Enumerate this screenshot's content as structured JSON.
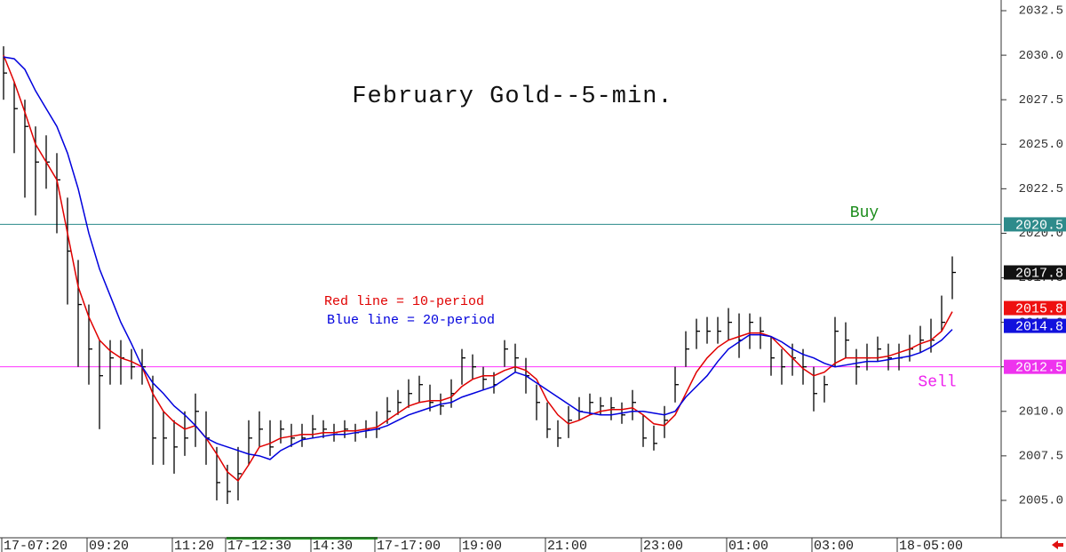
{
  "chart_data": {
    "type": "hlc",
    "title": "February Gold--5-min.",
    "annotations": [
      {
        "text": "Red line = 10-period",
        "color": "#e00000"
      },
      {
        "text": "Blue line = 20-period",
        "color": "#0000dd"
      }
    ],
    "categories": [
      "17-07:20",
      null,
      null,
      null,
      null,
      null,
      null,
      null,
      "09:20",
      null,
      null,
      null,
      null,
      null,
      null,
      null,
      "11:20",
      null,
      null,
      null,
      null,
      "17-12:30",
      null,
      null,
      null,
      null,
      null,
      null,
      null,
      "14:30",
      null,
      null,
      null,
      null,
      null,
      "17-17:00",
      null,
      null,
      null,
      null,
      null,
      null,
      null,
      "19:00",
      null,
      null,
      null,
      null,
      null,
      null,
      null,
      "21:00",
      null,
      null,
      null,
      null,
      null,
      null,
      null,
      null,
      "23:00",
      null,
      null,
      null,
      null,
      null,
      null,
      null,
      "01:00",
      null,
      null,
      null,
      null,
      null,
      null,
      null,
      "03:00",
      null,
      null,
      null,
      null,
      null,
      null,
      null,
      "18-05:00",
      null,
      null,
      null,
      null,
      null
    ],
    "high": [
      2030.5,
      2028.5,
      2027.5,
      2026.0,
      2025.5,
      2024.5,
      2022.0,
      2018.5,
      2016.0,
      2014.0,
      2014.0,
      2014.0,
      2013.5,
      2013.5,
      2012.0,
      2010.0,
      2009.5,
      2010.0,
      2011.0,
      2010.0,
      2008.0,
      2007.0,
      2008.0,
      2009.5,
      2010.0,
      2009.5,
      2009.5,
      2009.3,
      2009.3,
      2009.8,
      2009.5,
      2009.3,
      2009.5,
      2009.3,
      2009.5,
      2010.0,
      2010.8,
      2011.2,
      2011.8,
      2012.0,
      2011.5,
      2011.0,
      2011.8,
      2013.5,
      2013.2,
      2012.5,
      2012.2,
      2014.0,
      2013.8,
      2013.0,
      2011.5,
      2010.5,
      2009.5,
      2010.3,
      2010.8,
      2011.0,
      2010.8,
      2010.8,
      2010.5,
      2011.2,
      2009.8,
      2009.2,
      2010.3,
      2012.5,
      2014.5,
      2015.2,
      2015.3,
      2015.3,
      2015.8,
      2015.5,
      2015.5,
      2015.3,
      2014.2,
      2013.5,
      2013.8,
      2013.5,
      2012.5,
      2012.0,
      2015.3,
      2015.0,
      2013.5,
      2013.8,
      2014.2,
      2013.8,
      2013.8,
      2014.3,
      2014.8,
      2015.2,
      2016.5,
      2018.7
    ],
    "low": [
      2027.5,
      2024.5,
      2022.0,
      2021.0,
      2022.5,
      2020.0,
      2016.0,
      2012.5,
      2011.5,
      2009.0,
      2011.5,
      2011.5,
      2011.8,
      2011.5,
      2007.0,
      2007.0,
      2006.5,
      2007.5,
      2008.0,
      2007.0,
      2005.0,
      2004.8,
      2005.0,
      2007.0,
      2008.0,
      2007.5,
      2008.2,
      2008.0,
      2008.0,
      2008.5,
      2008.5,
      2008.3,
      2008.5,
      2008.3,
      2008.5,
      2008.5,
      2009.3,
      2009.8,
      2010.2,
      2010.5,
      2010.0,
      2009.8,
      2010.2,
      2011.5,
      2011.8,
      2011.2,
      2011.0,
      2012.5,
      2012.2,
      2011.0,
      2009.5,
      2008.5,
      2008.0,
      2008.5,
      2009.5,
      2009.8,
      2009.8,
      2009.5,
      2009.3,
      2009.5,
      2008.0,
      2007.8,
      2008.5,
      2010.5,
      2012.5,
      2013.5,
      2013.8,
      2013.8,
      2014.0,
      2013.0,
      2013.5,
      2013.5,
      2012.0,
      2011.5,
      2012.0,
      2011.5,
      2010.0,
      2010.5,
      2012.5,
      2013.0,
      2011.5,
      2012.3,
      2012.8,
      2012.3,
      2012.3,
      2012.8,
      2013.3,
      2013.3,
      2014.5,
      2016.3
    ],
    "close": [
      2029.0,
      2027.0,
      2026.0,
      2024.0,
      2024.0,
      2023.0,
      2019.0,
      2016.0,
      2013.5,
      2012.0,
      2013.0,
      2013.0,
      2012.5,
      2012.5,
      2008.5,
      2008.5,
      2008.0,
      2008.5,
      2010.0,
      2008.5,
      2006.0,
      2005.5,
      2006.5,
      2008.5,
      2009.0,
      2008.0,
      2009.0,
      2008.5,
      2008.5,
      2009.0,
      2009.0,
      2008.8,
      2009.0,
      2008.8,
      2009.0,
      2009.0,
      2010.0,
      2010.5,
      2011.0,
      2011.5,
      2010.5,
      2010.3,
      2011.0,
      2013.0,
      2012.5,
      2011.8,
      2011.5,
      2013.5,
      2013.0,
      2012.0,
      2010.5,
      2009.0,
      2008.5,
      2009.5,
      2010.0,
      2010.5,
      2010.3,
      2010.2,
      2009.8,
      2010.5,
      2008.5,
      2008.2,
      2009.5,
      2011.5,
      2013.5,
      2014.5,
      2014.5,
      2014.5,
      2015.0,
      2014.0,
      2015.0,
      2014.5,
      2013.0,
      2012.5,
      2013.0,
      2012.5,
      2011.0,
      2011.5,
      2014.5,
      2014.0,
      2012.5,
      2013.0,
      2013.5,
      2013.0,
      2013.0,
      2013.5,
      2014.0,
      2014.0,
      2015.0,
      2017.8
    ],
    "bar_color": "#000000",
    "lines": [
      {
        "color": "#e00000",
        "values": [
          2030.0,
          2028.5,
          2026.8,
          2025.0,
          2024.0,
          2023.0,
          2020.0,
          2017.0,
          2015.3,
          2014.0,
          2013.4,
          2013.0,
          2012.8,
          2012.5,
          2011.0,
          2010.0,
          2009.4,
          2009.0,
          2009.2,
          2008.5,
          2007.6,
          2006.6,
          2006.1,
          2007.0,
          2008.0,
          2008.2,
          2008.5,
          2008.6,
          2008.7,
          2008.7,
          2008.8,
          2008.8,
          2008.9,
          2008.9,
          2009.0,
          2009.1,
          2009.5,
          2009.9,
          2010.3,
          2010.5,
          2010.6,
          2010.6,
          2010.8,
          2011.4,
          2011.8,
          2012.0,
          2012.0,
          2012.3,
          2012.5,
          2012.3,
          2011.8,
          2010.6,
          2009.8,
          2009.3,
          2009.5,
          2009.8,
          2010.0,
          2010.1,
          2010.1,
          2010.2,
          2009.8,
          2009.3,
          2009.2,
          2009.8,
          2011.0,
          2012.2,
          2013.0,
          2013.6,
          2014.0,
          2014.2,
          2014.4,
          2014.4,
          2014.2,
          2013.6,
          2013.0,
          2012.4,
          2012.0,
          2012.2,
          2012.7,
          2013.0,
          2013.0,
          2013.0,
          2013.0,
          2013.1,
          2013.3,
          2013.5,
          2013.8,
          2014.0,
          2014.5,
          2015.6
        ]
      },
      {
        "color": "#0000dd",
        "values": [
          2029.9,
          2029.8,
          2029.2,
          2028.0,
          2027.0,
          2026.0,
          2024.5,
          2022.5,
          2020.0,
          2018.0,
          2016.5,
          2015.0,
          2013.8,
          2012.5,
          2011.6,
          2011.0,
          2010.3,
          2009.8,
          2009.2,
          2008.5,
          2008.2,
          2008.0,
          2007.8,
          2007.6,
          2007.5,
          2007.3,
          2007.8,
          2008.1,
          2008.4,
          2008.5,
          2008.6,
          2008.7,
          2008.7,
          2008.8,
          2008.9,
          2009.0,
          2009.2,
          2009.5,
          2009.8,
          2010.0,
          2010.2,
          2010.4,
          2010.5,
          2010.8,
          2011.0,
          2011.2,
          2011.4,
          2011.8,
          2012.2,
          2012.0,
          2011.6,
          2011.2,
          2010.8,
          2010.4,
          2010.0,
          2009.9,
          2009.8,
          2009.8,
          2009.9,
          2010.0,
          2010.0,
          2009.9,
          2009.8,
          2010.0,
          2010.8,
          2011.4,
          2012.0,
          2012.8,
          2013.5,
          2013.9,
          2014.3,
          2014.3,
          2014.2,
          2013.9,
          2013.5,
          2013.2,
          2013.0,
          2012.7,
          2012.5,
          2012.6,
          2012.7,
          2012.8,
          2012.8,
          2012.9,
          2013.0,
          2013.1,
          2013.3,
          2013.6,
          2014.0,
          2014.6
        ]
      }
    ],
    "levels": [
      {
        "label": "Buy",
        "value": 2020.5,
        "color": "#2a8a8a",
        "label_color": "#1b8c1b"
      },
      {
        "label": "Sell",
        "value": 2012.5,
        "color": "#ff33ff",
        "label_color": "#ee22ee"
      }
    ],
    "markers": [
      {
        "value": 2020.5,
        "color": "#2e8b8b"
      },
      {
        "value": 2017.8,
        "color": "#111111"
      },
      {
        "value": 2015.8,
        "color": "#ee1111"
      },
      {
        "value": 2014.8,
        "color": "#1111dd"
      },
      {
        "value": 2012.5,
        "color": "#ee33ee"
      }
    ],
    "ylim": [
      2002.9,
      2033.1
    ],
    "yticks": [
      {
        "value": 2005,
        "label": "2005.0"
      },
      2007.5,
      {
        "value": 2010,
        "label": "2010.0"
      },
      2012.5,
      {
        "value": 2015,
        "label": "2015.0"
      },
      2017.5,
      {
        "value": 2020,
        "label": "2020.0"
      },
      2022.5,
      {
        "value": 2025,
        "label": "2025.0"
      },
      2027.5,
      {
        "value": 2030,
        "label": "2030.0"
      },
      2032.5
    ]
  }
}
